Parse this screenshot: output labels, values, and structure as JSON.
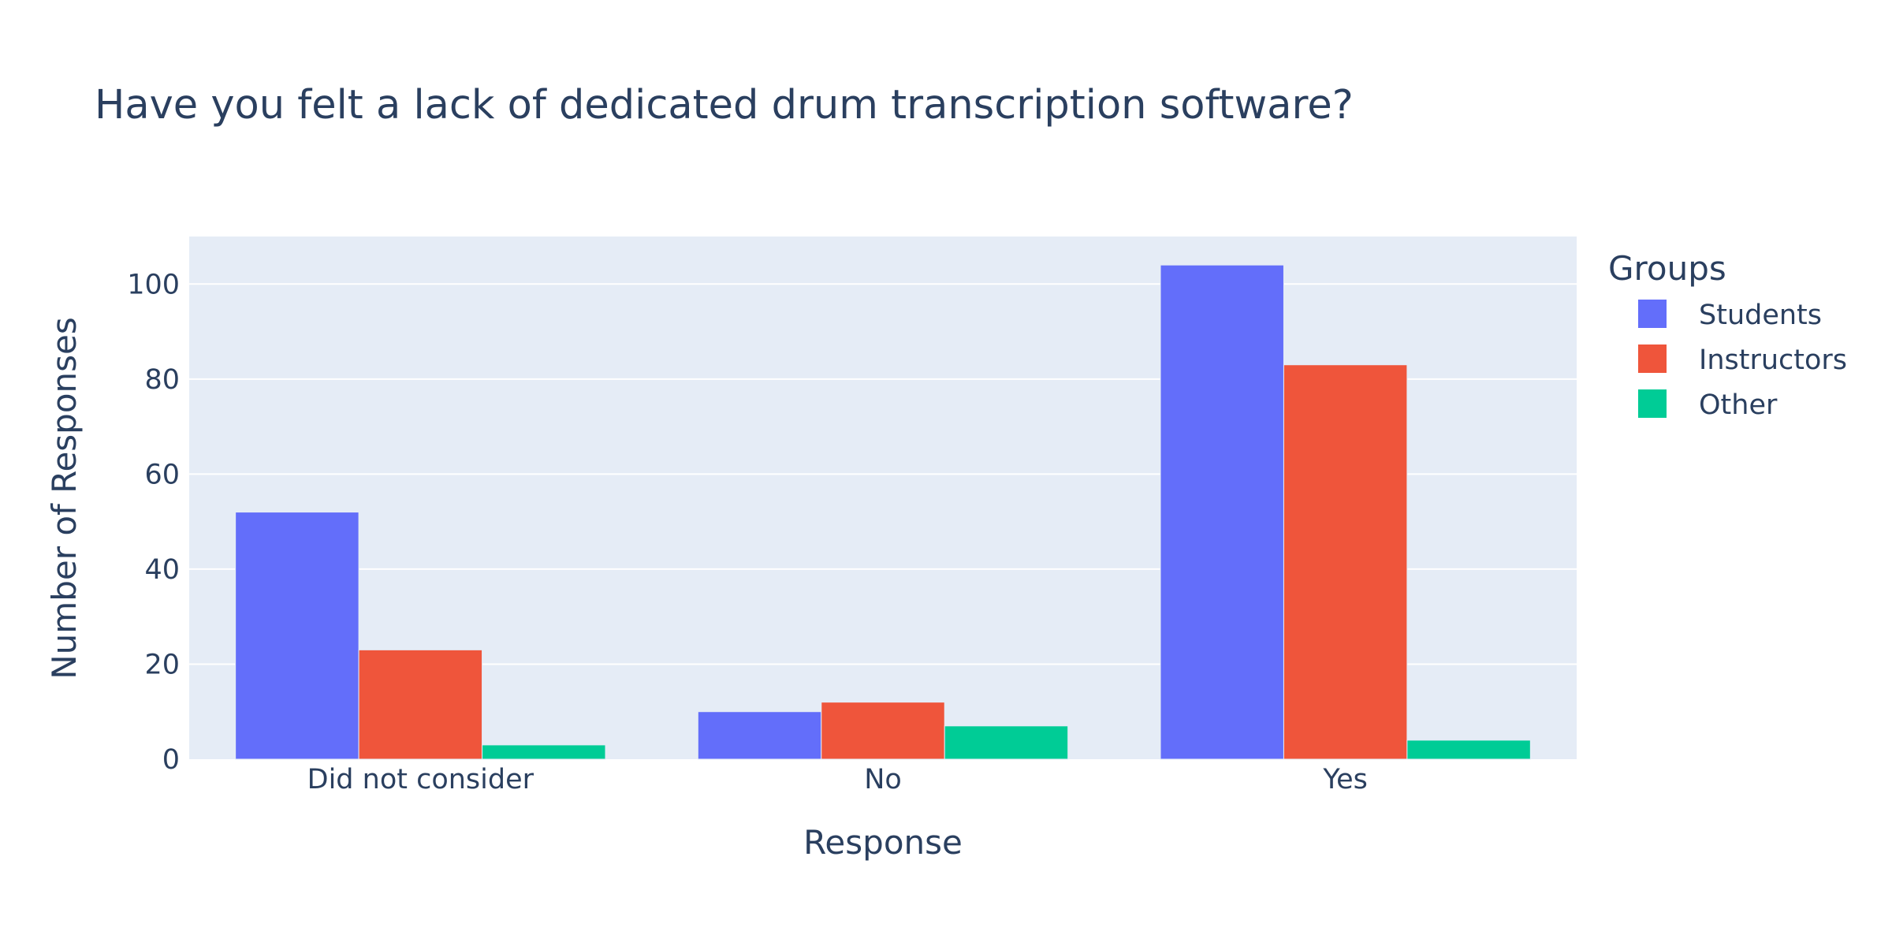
{
  "chart_data": {
    "type": "bar",
    "title": "Have you felt a lack of dedicated drum transcription software?",
    "xlabel": "Response",
    "ylabel": "Number of Responses",
    "categories": [
      "Did not consider",
      "No",
      "Yes"
    ],
    "series": [
      {
        "name": "Students",
        "values": [
          52,
          10,
          104
        ],
        "color": "#636efa"
      },
      {
        "name": "Instructors",
        "values": [
          23,
          12,
          83
        ],
        "color": "#ef553b"
      },
      {
        "name": "Other",
        "values": [
          3,
          7,
          4
        ],
        "color": "#00cc96"
      }
    ],
    "ylim": [
      0,
      110
    ],
    "yticks": [
      0,
      20,
      40,
      60,
      80,
      100
    ],
    "grid": true,
    "legend": {
      "title": "Groups",
      "placement": "right"
    },
    "plot_background": "#e5ecf6"
  }
}
